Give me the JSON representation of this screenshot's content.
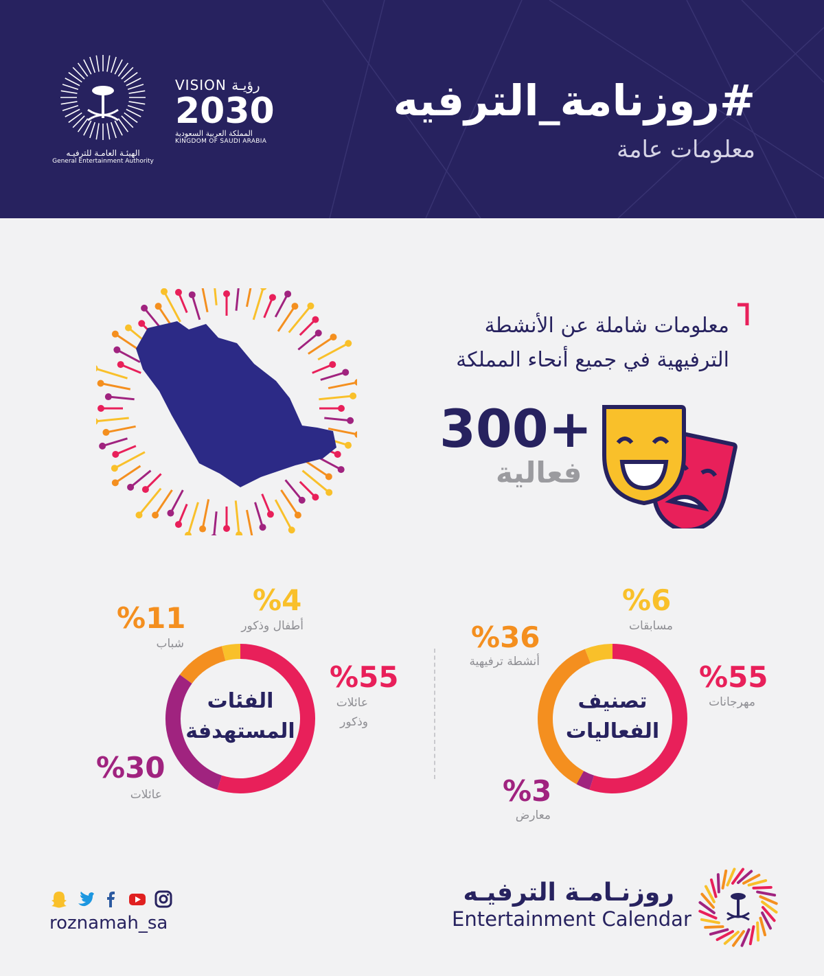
{
  "header": {
    "title": "#روزنامة_الترفيه",
    "subtitle": "معلومات عامة",
    "vision": {
      "line1": "VISION رؤيـة",
      "year": "2030",
      "country_ar": "المملكة العربية السعودية",
      "country_en": "KINGDOM OF SAUDI ARABIA"
    },
    "authority": {
      "name_ar": "الهيئـة العامـة للترفيـه",
      "name_en": "General Entertainment Authority"
    }
  },
  "intro": {
    "line1": "معلومات شاملة عن الأنشطة",
    "line2": "الترفيهية في جميع أنحاء المملكة"
  },
  "events_count": {
    "value": "300+",
    "label": "فعالية"
  },
  "chart_data": [
    {
      "type": "pie",
      "title": "تصنيف الفعاليات",
      "series": [
        {
          "name": "مهرجانات",
          "value": 55,
          "label": "%55",
          "color": "#e8205a"
        },
        {
          "name": "معارض",
          "value": 3,
          "label": "%3",
          "color": "#a0237f"
        },
        {
          "name": "أنشطة ترفيهية",
          "value": 36,
          "label": "%36",
          "color": "#f48f1f"
        },
        {
          "name": "مسابقات",
          "value": 6,
          "label": "%6",
          "color": "#f9c02a"
        }
      ]
    },
    {
      "type": "pie",
      "title": "الفئات المستهدفة",
      "series": [
        {
          "name": "عائلات وذكور",
          "value": 55,
          "label": "%55",
          "color": "#e8205a"
        },
        {
          "name": "عائلات",
          "value": 30,
          "label": "%30",
          "color": "#a0237f"
        },
        {
          "name": "شباب",
          "value": 11,
          "label": "%11",
          "color": "#f48f1f"
        },
        {
          "name": "أطفال وذكور",
          "value": 4,
          "label": "%4",
          "color": "#f9c02a"
        }
      ]
    }
  ],
  "donut_labels": {
    "events": {
      "center_line1": "تصنيف",
      "center_line2": "الفعاليات",
      "festivals": "مهرجانات",
      "exhibitions": "معارض",
      "activities": "أنشطة ترفيهية",
      "competitions": "مسابقات"
    },
    "audience": {
      "center_line1": "الفئات",
      "center_line2": "المستهدفة",
      "families_males_1": "عائلات",
      "families_males_2": "وذكور",
      "families": "عائلات",
      "youth": "شباب",
      "kids_males": "أطفال وذكور"
    }
  },
  "footer": {
    "handle": "roznamah_sa",
    "brand_ar": "روزنـامـة الترفيـه",
    "brand_en": "Entertainment Calendar",
    "social_icons": [
      "instagram-icon",
      "youtube-icon",
      "facebook-icon",
      "twitter-icon",
      "snapchat-icon"
    ]
  },
  "colors": {
    "navy": "#27225f",
    "pink": "#e8205a",
    "purple": "#a0237f",
    "orange": "#f48f1f",
    "yellow": "#f9c02a"
  }
}
